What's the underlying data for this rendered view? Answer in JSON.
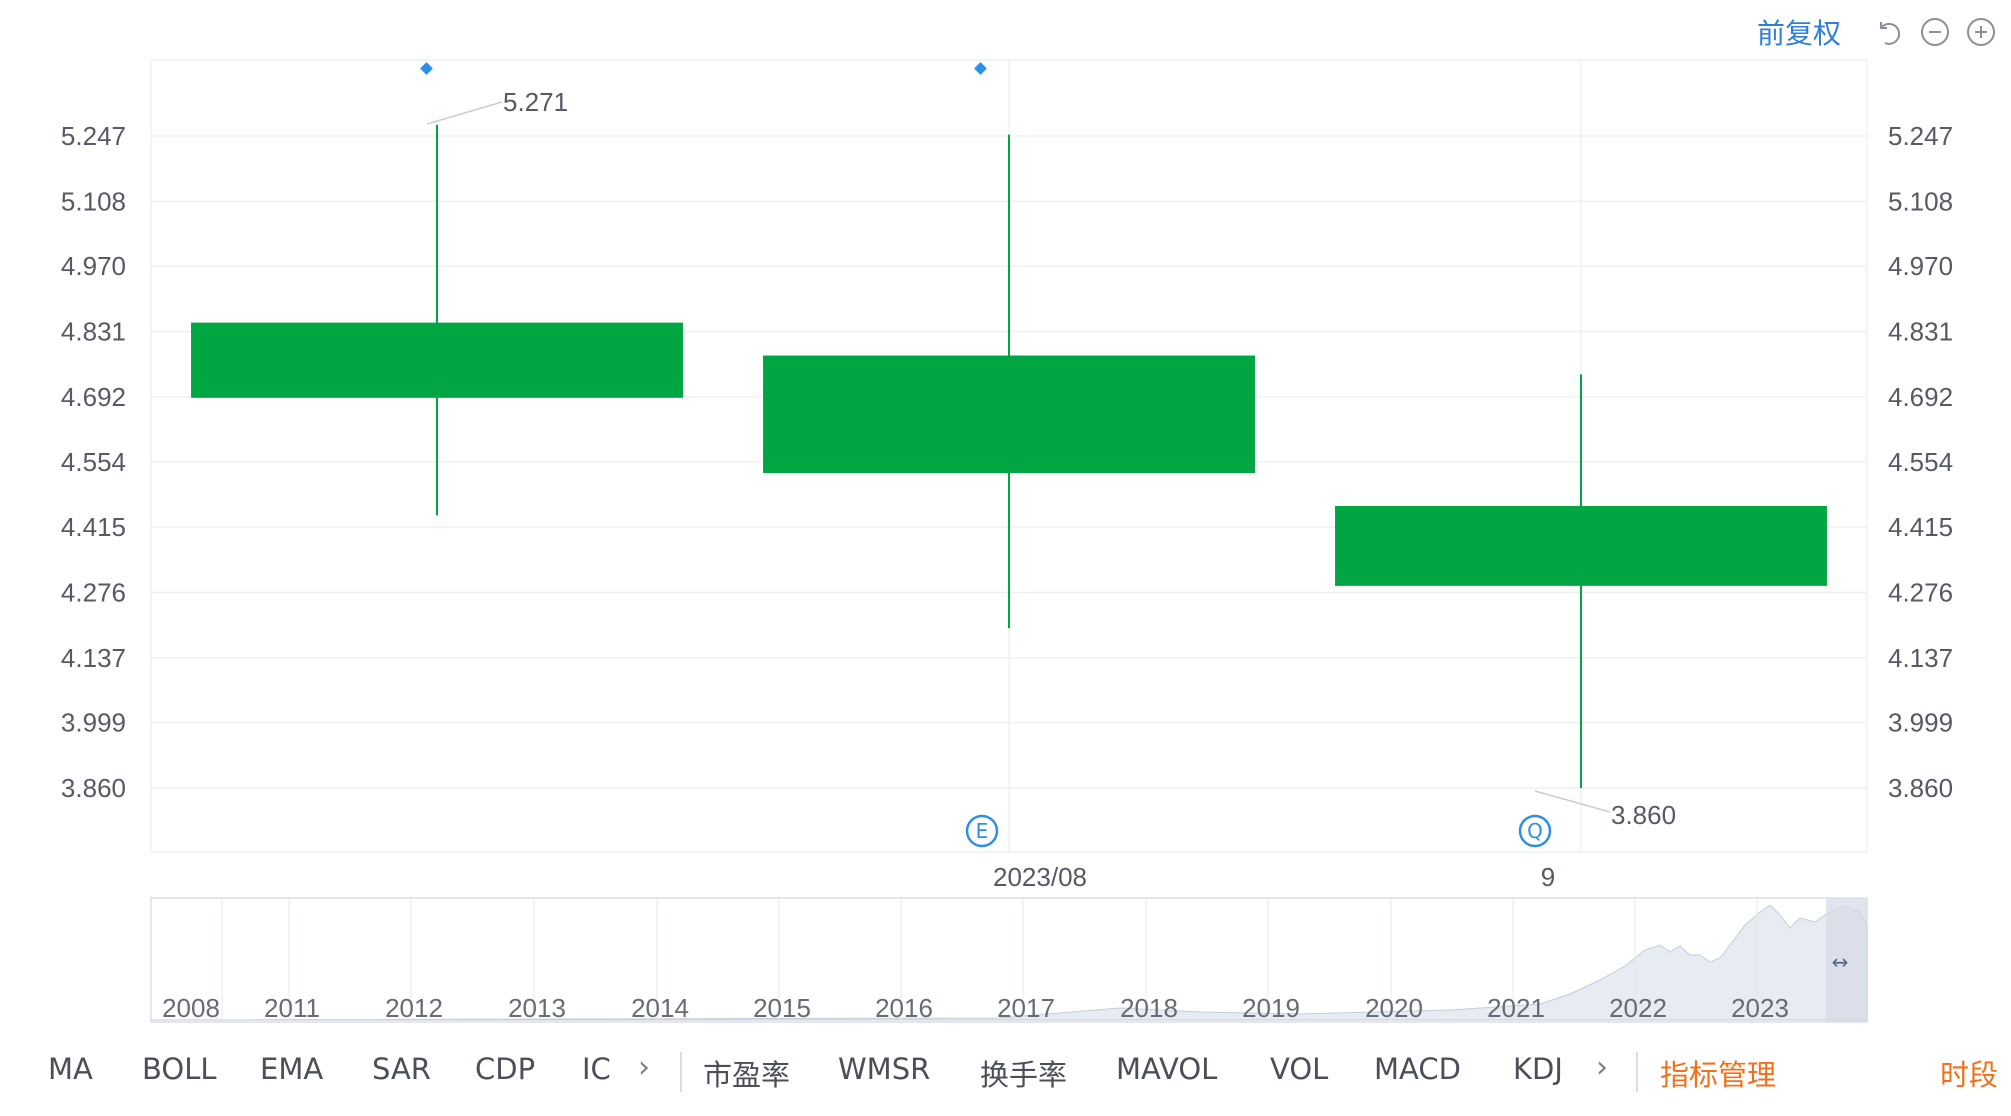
{
  "header": {
    "price_mode": "前复权",
    "icons": [
      "undo-icon",
      "zoom-out-icon",
      "zoom-in-icon"
    ]
  },
  "colors": {
    "candle": "#00a642",
    "grid": "#eef0f3",
    "accent_blue": "#2f8fe6",
    "indicator_active": "#f0711b"
  },
  "chart_data": {
    "type": "candlestick",
    "y_ticks": [
      "5.247",
      "5.108",
      "4.970",
      "4.831",
      "4.692",
      "4.554",
      "4.415",
      "4.276",
      "4.137",
      "3.999",
      "3.860"
    ],
    "candles": [
      {
        "open": 4.85,
        "close": 4.69,
        "high": 5.271,
        "low": 4.44
      },
      {
        "open": 4.78,
        "close": 4.53,
        "high": 5.25,
        "low": 4.2
      },
      {
        "open": 4.46,
        "close": 4.29,
        "high": 4.74,
        "low": 3.86
      }
    ],
    "annotations": {
      "max_label": "5.271",
      "min_label": "3.860"
    },
    "x_labels": [
      "2023/08",
      "9"
    ],
    "event_markers": [
      "E",
      "Q"
    ],
    "navigator_years": [
      "2008",
      "2011",
      "2012",
      "2013",
      "2014",
      "2015",
      "2016",
      "2017",
      "2018",
      "2019",
      "2020",
      "2021",
      "2022",
      "2023"
    ],
    "navigator_handle": "↔"
  },
  "indicators": {
    "group1": [
      "MA",
      "BOLL",
      "EMA",
      "SAR",
      "CDP",
      "IC"
    ],
    "group2": [
      "市盈率",
      "WMSR",
      "换手率",
      "MAVOL",
      "VOL",
      "MACD",
      "KDJ"
    ],
    "manage": "指标管理",
    "period": "时段"
  }
}
